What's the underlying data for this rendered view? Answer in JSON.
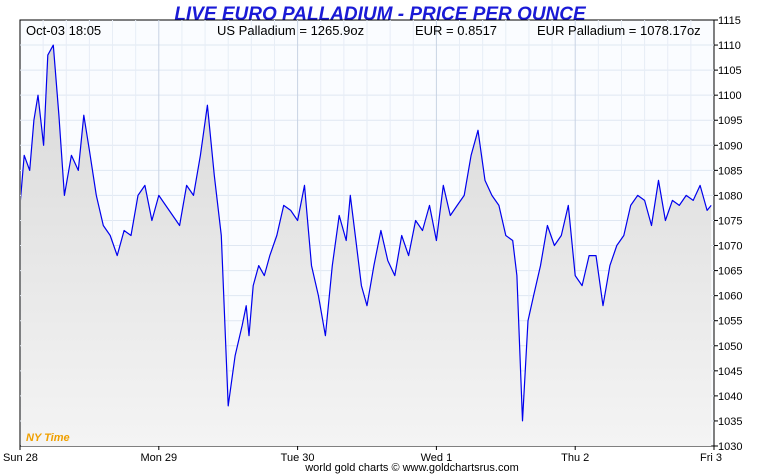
{
  "chart_data": {
    "type": "area",
    "title": "LIVE EURO PALLADIUM - PRICE PER OUNCE",
    "info": {
      "datetime": "Oct-03 18:05",
      "us_price": "US Palladium = 1265.9oz",
      "eur_rate": "EUR = 0.8517",
      "eur_price": "EUR Palladium = 1078.17oz"
    },
    "timezone_label": "NY Time",
    "footer": "world gold charts © www.goldchartsrus.com",
    "x_ticks": [
      "Sun 28",
      "Mon 29",
      "Tue 30",
      "Wed 1",
      "Thu 2",
      "Fri 3"
    ],
    "xlim": [
      0,
      5
    ],
    "ylim": [
      1030,
      1115
    ],
    "y_ticks": [
      1030,
      1035,
      1040,
      1045,
      1050,
      1055,
      1060,
      1065,
      1070,
      1075,
      1080,
      1085,
      1090,
      1095,
      1100,
      1105,
      1110,
      1115
    ],
    "grid": true,
    "series": [
      {
        "x": [
          0.0,
          0.03,
          0.07,
          0.1,
          0.13,
          0.17,
          0.2,
          0.24,
          0.28,
          0.32,
          0.37,
          0.42,
          0.46,
          0.5,
          0.55,
          0.6,
          0.65,
          0.7,
          0.75,
          0.8,
          0.85,
          0.9,
          0.95,
          1.0,
          1.05,
          1.1,
          1.15,
          1.2,
          1.25,
          1.3,
          1.35,
          1.4,
          1.45,
          1.5,
          1.55,
          1.6,
          1.63,
          1.65,
          1.68,
          1.72,
          1.76,
          1.8,
          1.85,
          1.9,
          1.95,
          2.0,
          2.05,
          2.1,
          2.15,
          2.2,
          2.25,
          2.3,
          2.35,
          2.38,
          2.42,
          2.46,
          2.5,
          2.55,
          2.6,
          2.65,
          2.7,
          2.75,
          2.8,
          2.85,
          2.9,
          2.95,
          3.0,
          3.05,
          3.1,
          3.15,
          3.2,
          3.25,
          3.3,
          3.35,
          3.4,
          3.45,
          3.5,
          3.55,
          3.58,
          3.62,
          3.66,
          3.7,
          3.75,
          3.8,
          3.85,
          3.9,
          3.95,
          4.0,
          4.05,
          4.1,
          4.15,
          4.2,
          4.25,
          4.3,
          4.35,
          4.4,
          4.45,
          4.5,
          4.55,
          4.6,
          4.65,
          4.7,
          4.75,
          4.8,
          4.85,
          4.9,
          4.95,
          4.98
        ],
        "y": [
          1078,
          1088,
          1085,
          1095,
          1100,
          1090,
          1108,
          1110,
          1096,
          1080,
          1088,
          1085,
          1096,
          1089,
          1080,
          1074,
          1072,
          1068,
          1073,
          1072,
          1080,
          1082,
          1075,
          1080,
          1078,
          1076,
          1074,
          1082,
          1080,
          1088,
          1098,
          1084,
          1072,
          1038,
          1048,
          1054,
          1058,
          1052,
          1062,
          1066,
          1064,
          1068,
          1072,
          1078,
          1077,
          1075,
          1082,
          1066,
          1060,
          1052,
          1066,
          1076,
          1071,
          1080,
          1071,
          1062,
          1058,
          1066,
          1073,
          1067,
          1064,
          1072,
          1068,
          1075,
          1073,
          1078,
          1071,
          1082,
          1076,
          1078,
          1080,
          1088,
          1093,
          1083,
          1080,
          1078,
          1072,
          1071,
          1064,
          1035,
          1055,
          1060,
          1066,
          1074,
          1070,
          1072,
          1078,
          1064,
          1062,
          1068,
          1068,
          1058,
          1066,
          1070,
          1072,
          1078,
          1080,
          1079,
          1074,
          1083,
          1075,
          1079,
          1078,
          1080,
          1079,
          1082,
          1077,
          1078
        ]
      }
    ]
  }
}
